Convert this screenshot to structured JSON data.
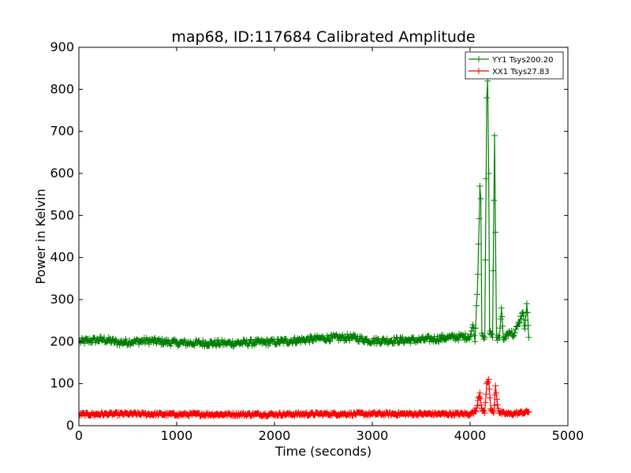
{
  "chart_data": {
    "type": "line",
    "title": "map68, ID:117684 Calibrated Amplitude",
    "xlabel": "Time (seconds)",
    "ylabel": "Power in Kelvin",
    "xlim": [
      0,
      5000
    ],
    "ylim": [
      0,
      900
    ],
    "xticks": [
      0,
      1000,
      2000,
      3000,
      4000,
      5000
    ],
    "yticks": [
      0,
      100,
      200,
      300,
      400,
      500,
      600,
      700,
      800,
      900
    ],
    "xtick_labels": [
      "0",
      "1000",
      "2000",
      "3000",
      "4000",
      "5000"
    ],
    "ytick_labels": [
      "0",
      "100",
      "200",
      "300",
      "400",
      "500",
      "600",
      "700",
      "800",
      "900"
    ],
    "grid": false,
    "legend_position": "top-right",
    "marker": "+",
    "series": [
      {
        "name": "YY1 Tsys200.20",
        "color": "#008000",
        "points": [
          [
            0,
            200
          ],
          [
            250,
            205
          ],
          [
            400,
            198
          ],
          [
            700,
            202
          ],
          [
            1000,
            197
          ],
          [
            1500,
            196
          ],
          [
            2000,
            199
          ],
          [
            2500,
            208
          ],
          [
            2800,
            210
          ],
          [
            3000,
            202
          ],
          [
            3500,
            204
          ],
          [
            3800,
            210
          ],
          [
            4000,
            212
          ],
          [
            4030,
            240
          ],
          [
            4050,
            200
          ],
          [
            4080,
            360
          ],
          [
            4100,
            570
          ],
          [
            4110,
            540
          ],
          [
            4120,
            220
          ],
          [
            4150,
            210
          ],
          [
            4170,
            780
          ],
          [
            4180,
            820
          ],
          [
            4190,
            600
          ],
          [
            4200,
            220
          ],
          [
            4230,
            210
          ],
          [
            4250,
            690
          ],
          [
            4260,
            460
          ],
          [
            4270,
            210
          ],
          [
            4300,
            210
          ],
          [
            4320,
            280
          ],
          [
            4340,
            205
          ],
          [
            4400,
            225
          ],
          [
            4450,
            215
          ],
          [
            4500,
            245
          ],
          [
            4540,
            270
          ],
          [
            4560,
            230
          ],
          [
            4580,
            290
          ],
          [
            4600,
            210
          ]
        ]
      },
      {
        "name": "XX1 Tsys27.83",
        "color": "#ff0000",
        "points": [
          [
            0,
            27
          ],
          [
            500,
            28
          ],
          [
            1000,
            27
          ],
          [
            1500,
            27
          ],
          [
            2000,
            27
          ],
          [
            2500,
            28
          ],
          [
            3000,
            28
          ],
          [
            3500,
            28
          ],
          [
            4000,
            28
          ],
          [
            4060,
            35
          ],
          [
            4080,
            60
          ],
          [
            4100,
            78
          ],
          [
            4120,
            40
          ],
          [
            4150,
            30
          ],
          [
            4170,
            100
          ],
          [
            4190,
            110
          ],
          [
            4210,
            40
          ],
          [
            4240,
            30
          ],
          [
            4260,
            95
          ],
          [
            4280,
            50
          ],
          [
            4300,
            30
          ],
          [
            4400,
            28
          ],
          [
            4500,
            30
          ],
          [
            4600,
            33
          ]
        ]
      }
    ]
  }
}
